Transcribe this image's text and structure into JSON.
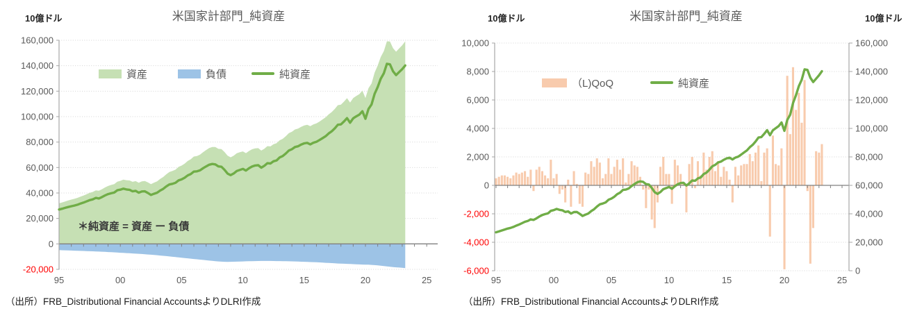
{
  "left_chart": {
    "unit_label": "10億ドル",
    "title": "米国家計部門_純資産",
    "legend": [
      {
        "label": "資産",
        "swatch": "area",
        "color": "#c6e0b4"
      },
      {
        "label": "負債",
        "swatch": "area",
        "color": "#9dc3e6"
      },
      {
        "label": "純資産",
        "swatch": "line",
        "color": "#70ad47"
      }
    ],
    "annotation": "＊純資産 = 資産 ー 負債",
    "y_ticks": [
      "160,000",
      "140,000",
      "120,000",
      "100,000",
      "80,000",
      "60,000",
      "40,000",
      "20,000",
      "0",
      "-20,000"
    ],
    "x_ticks": [
      "95",
      "00",
      "05",
      "10",
      "15",
      "20",
      "25"
    ],
    "source": "（出所）FRB_Distributional Financial AccountsよりDLRI作成"
  },
  "right_chart": {
    "unit_label_left": "10億ドル",
    "unit_label_right": "10億ドル",
    "title": "米国家計部門_純資産",
    "legend": [
      {
        "label": "（L)QoQ",
        "swatch": "bar",
        "color": "#f8cbad"
      },
      {
        "label": "純資産",
        "swatch": "line",
        "color": "#70ad47"
      }
    ],
    "y_ticks_left": [
      "10,000",
      "8,000",
      "6,000",
      "4,000",
      "2,000",
      "0",
      "-2,000",
      "-4,000",
      "-6,000"
    ],
    "y_ticks_right": [
      "160,000",
      "140,000",
      "120,000",
      "100,000",
      "80,000",
      "60,000",
      "40,000",
      "20,000",
      "0"
    ],
    "x_ticks": [
      "95",
      "00",
      "05",
      "10",
      "15",
      "20",
      "25"
    ],
    "source": "（出所）FRB_Distributional Financial AccountsよりDLRI作成"
  },
  "colors": {
    "assets_area": "#c6e0b4",
    "liabilities_area": "#9dc3e6",
    "net_worth_line": "#70ad47",
    "qoq_bar": "#f8cbad",
    "grid": "#d4d4d4",
    "axis_line": "#a6a6a6",
    "zero_line": "#7f7f7f",
    "tick_label": "#595959",
    "negative_tick_label": "#ff0000"
  },
  "chart_data": [
    {
      "type": "area",
      "title": "米国家計部門_純資産",
      "unit": "10億ドル",
      "x_start": 1995,
      "x_step_years": 0.25,
      "x_tick_years": [
        1995,
        2000,
        2005,
        2010,
        2015,
        2020,
        2025
      ],
      "x_tick_labels": [
        "95",
        "00",
        "05",
        "10",
        "15",
        "20",
        "25"
      ],
      "ylim": [
        -20000,
        160000
      ],
      "y_step": 20000,
      "grid": "dotted",
      "legend_position": "inside-top",
      "series": [
        {
          "name": "資産",
          "type": "area",
          "color": "#c6e0b4",
          "values": [
            31900,
            32580,
            33360,
            34140,
            34820,
            35400,
            36180,
            37170,
            38060,
            39050,
            40140,
            40840,
            42040,
            41750,
            42960,
            44380,
            45500,
            46330,
            46960,
            48900,
            49540,
            50480,
            50020,
            49860,
            48800,
            49350,
            48000,
            49160,
            49420,
            48300,
            47000,
            48100,
            49100,
            51020,
            52550,
            54700,
            56550,
            57300,
            58350,
            60500,
            61550,
            63100,
            65150,
            66500,
            68650,
            69100,
            70150,
            72100,
            73750,
            75300,
            76150,
            76100,
            74700,
            74550,
            72250,
            69300,
            68050,
            69300,
            71250,
            72000,
            72700,
            71300,
            73000,
            74350,
            75100,
            75250,
            73300,
            74800,
            76800,
            76600,
            78350,
            79100,
            81400,
            82550,
            84600,
            87100,
            88150,
            89900,
            90600,
            92000,
            93050,
            93550,
            92450,
            93850,
            94650,
            96150,
            97800,
            99450,
            101750,
            103600,
            106050,
            109000,
            109400,
            111800,
            114500,
            111000,
            114600,
            116200,
            117700,
            120450,
            114600,
            122350,
            126100,
            134600,
            140100,
            146850,
            151500,
            159200,
            159050,
            153800,
            151000,
            153600,
            156100,
            159200
          ]
        },
        {
          "name": "負債",
          "type": "area",
          "color": "#9dc3e6",
          "values": [
            -4900,
            -4980,
            -5060,
            -5140,
            -5220,
            -5300,
            -5380,
            -5470,
            -5560,
            -5650,
            -5740,
            -5840,
            -5940,
            -6050,
            -6160,
            -6280,
            -6400,
            -6530,
            -6660,
            -6800,
            -6940,
            -7080,
            -7220,
            -7360,
            -7500,
            -7650,
            -7800,
            -7960,
            -8120,
            -8300,
            -8500,
            -8700,
            -8900,
            -9120,
            -9350,
            -9600,
            -9850,
            -10100,
            -10350,
            -10600,
            -10850,
            -11100,
            -11350,
            -11600,
            -11850,
            -12100,
            -12350,
            -12600,
            -12850,
            -13100,
            -13350,
            -13600,
            -13800,
            -13950,
            -14050,
            -14100,
            -14050,
            -14000,
            -13950,
            -13900,
            -13800,
            -13700,
            -13600,
            -13550,
            -13500,
            -13450,
            -13400,
            -13400,
            -13400,
            -13400,
            -13450,
            -13500,
            -13500,
            -13550,
            -13600,
            -13700,
            -13750,
            -13800,
            -13900,
            -14000,
            -14050,
            -14150,
            -14250,
            -14350,
            -14450,
            -14550,
            -14700,
            -14850,
            -14950,
            -15100,
            -15250,
            -15400,
            -15500,
            -15600,
            -15700,
            -15800,
            -15900,
            -16000,
            -16100,
            -16250,
            -16300,
            -16350,
            -16500,
            -16700,
            -16900,
            -17150,
            -17400,
            -17700,
            -17950,
            -18200,
            -18400,
            -18600,
            -18800,
            -19000
          ]
        },
        {
          "name": "純資産",
          "type": "line",
          "color": "#70ad47",
          "values": [
            27000,
            27600,
            28300,
            29000,
            29600,
            30100,
            30800,
            31700,
            32500,
            33400,
            34400,
            35000,
            36100,
            35700,
            36800,
            38100,
            39100,
            39800,
            40300,
            42100,
            42600,
            43400,
            42800,
            42500,
            41300,
            41700,
            40200,
            41200,
            41300,
            40000,
            38500,
            39400,
            40200,
            41900,
            43200,
            45100,
            46700,
            47200,
            48000,
            49900,
            50700,
            52000,
            53800,
            54900,
            56800,
            57000,
            57800,
            59500,
            60900,
            62200,
            62800,
            62500,
            60900,
            60600,
            58200,
            55200,
            54000,
            55300,
            57300,
            58100,
            58900,
            57600,
            59400,
            60800,
            61600,
            61800,
            59900,
            61400,
            63400,
            63200,
            64900,
            65600,
            67900,
            69000,
            71000,
            73400,
            74400,
            76100,
            76700,
            78000,
            79000,
            79400,
            78200,
            79500,
            80200,
            81600,
            83100,
            84600,
            86800,
            88500,
            90800,
            93600,
            93900,
            96200,
            98800,
            95200,
            98700,
            100200,
            101600,
            104200,
            98300,
            106000,
            109600,
            117900,
            123200,
            129700,
            134100,
            141500,
            141100,
            135600,
            132600,
            135000,
            137300,
            140200
          ]
        }
      ]
    },
    {
      "type": "bar",
      "title": "米国家計部門_純資産",
      "unit_left": "10億ドル",
      "unit_right": "10億ドル",
      "x_start": 1995,
      "x_step_years": 0.25,
      "x_tick_years": [
        1995,
        2000,
        2005,
        2010,
        2015,
        2020,
        2025
      ],
      "x_tick_labels": [
        "95",
        "00",
        "05",
        "10",
        "15",
        "20",
        "25"
      ],
      "ylim_left": [
        -6000,
        10000
      ],
      "y_step_left": 2000,
      "ylim_right": [
        0,
        160000
      ],
      "y_step_right": 20000,
      "grid": "dotted",
      "legend_position": "inside-top",
      "series": [
        {
          "name": "（L)QoQ",
          "type": "bar",
          "axis": "left",
          "color": "#f8cbad",
          "values": [
            500,
            600,
            700,
            700,
            600,
            500,
            700,
            900,
            800,
            900,
            1000,
            600,
            1100,
            -400,
            1100,
            1300,
            1000,
            700,
            500,
            1800,
            500,
            800,
            -600,
            -300,
            -1200,
            400,
            -1500,
            1000,
            100,
            -1300,
            -1500,
            900,
            800,
            1700,
            1300,
            1900,
            1600,
            500,
            800,
            1900,
            800,
            1300,
            1800,
            1100,
            1900,
            200,
            800,
            1700,
            1400,
            1300,
            600,
            -300,
            -1600,
            -300,
            -2400,
            -3000,
            -1200,
            1300,
            2000,
            800,
            800,
            -1300,
            1800,
            1400,
            800,
            200,
            -1900,
            1500,
            2000,
            -200,
            1700,
            700,
            2300,
            1100,
            2000,
            2400,
            1000,
            1700,
            600,
            1300,
            1000,
            400,
            -1200,
            1300,
            700,
            1400,
            1500,
            1500,
            2200,
            1700,
            2300,
            2800,
            300,
            2300,
            2600,
            -3600,
            3500,
            1500,
            1400,
            2600,
            -5900,
            7700,
            3600,
            8300,
            5300,
            6500,
            4400,
            7400,
            -400,
            -5500,
            -3000,
            2400,
            2300,
            2900
          ]
        },
        {
          "name": "純資産",
          "type": "line",
          "axis": "right",
          "color": "#70ad47",
          "values": [
            27000,
            27600,
            28300,
            29000,
            29600,
            30100,
            30800,
            31700,
            32500,
            33400,
            34400,
            35000,
            36100,
            35700,
            36800,
            38100,
            39100,
            39800,
            40300,
            42100,
            42600,
            43400,
            42800,
            42500,
            41300,
            41700,
            40200,
            41200,
            41300,
            40000,
            38500,
            39400,
            40200,
            41900,
            43200,
            45100,
            46700,
            47200,
            48000,
            49900,
            50700,
            52000,
            53800,
            54900,
            56800,
            57000,
            57800,
            59500,
            60900,
            62200,
            62800,
            62500,
            60900,
            60600,
            58200,
            55200,
            54000,
            55300,
            57300,
            58100,
            58900,
            57600,
            59400,
            60800,
            61600,
            61800,
            59900,
            61400,
            63400,
            63200,
            64900,
            65600,
            67900,
            69000,
            71000,
            73400,
            74400,
            76100,
            76700,
            78000,
            79000,
            79400,
            78200,
            79500,
            80200,
            81600,
            83100,
            84600,
            86800,
            88500,
            90800,
            93600,
            93900,
            96200,
            98800,
            95200,
            98700,
            100200,
            101600,
            104200,
            98300,
            106000,
            109600,
            117900,
            123200,
            129700,
            134100,
            141500,
            141100,
            135600,
            132600,
            135000,
            137300,
            140200
          ]
        }
      ]
    }
  ]
}
